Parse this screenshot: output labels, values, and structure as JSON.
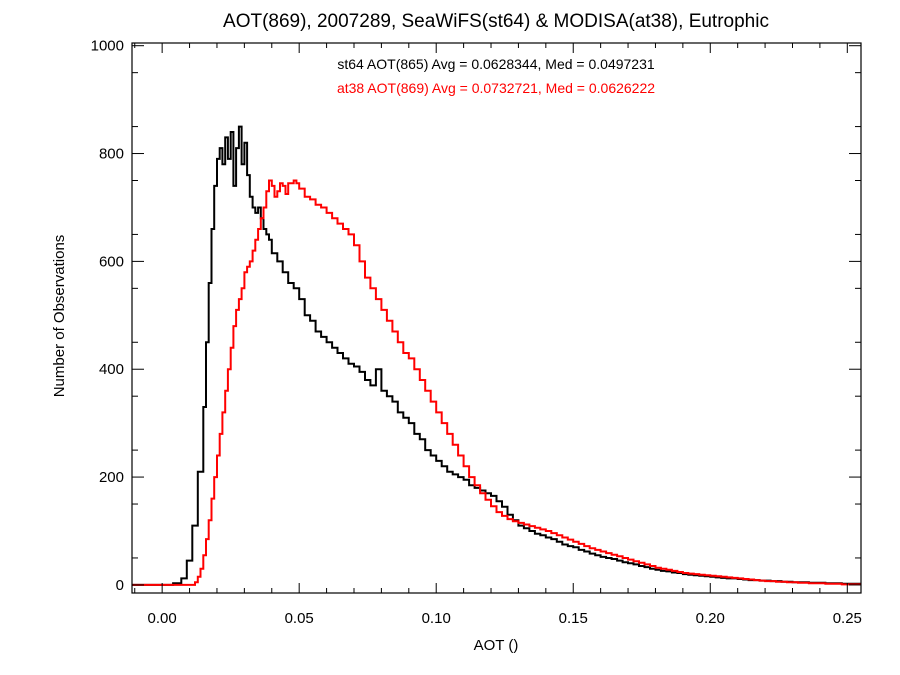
{
  "chart_data": {
    "type": "line",
    "title": "AOT(869), 2007289, SeaWiFS(st64) & MODISA(at38), Eutrophic",
    "xlabel": "AOT ()",
    "ylabel": "Number of Observations",
    "xlim": [
      -0.011,
      0.255
    ],
    "ylim": [
      -15,
      1005
    ],
    "xticks": [
      0.0,
      0.05,
      0.1,
      0.15,
      0.2,
      0.25
    ],
    "xtick_labels": [
      "0.00",
      "0.05",
      "0.10",
      "0.15",
      "0.20",
      "0.25"
    ],
    "yticks": [
      0,
      200,
      400,
      600,
      800,
      1000
    ],
    "ytick_labels": [
      "0",
      "200",
      "400",
      "600",
      "800",
      "1000"
    ],
    "grid": false,
    "step": true,
    "annotations": [
      {
        "text": "st64 AOT(865) Avg = 0.0628344, Med = 0.0497231",
        "color": "#000000"
      },
      {
        "text": "at38 AOT(869) Avg = 0.0732721, Med = 0.0626222",
        "color": "#ff0000"
      }
    ],
    "series": [
      {
        "color": "#000000",
        "points": [
          [
            -0.011,
            0
          ],
          [
            0.0,
            0
          ],
          [
            0.004,
            3
          ],
          [
            0.007,
            12
          ],
          [
            0.009,
            45
          ],
          [
            0.011,
            110
          ],
          [
            0.013,
            210
          ],
          [
            0.015,
            330
          ],
          [
            0.016,
            450
          ],
          [
            0.017,
            560
          ],
          [
            0.018,
            660
          ],
          [
            0.019,
            740
          ],
          [
            0.02,
            790
          ],
          [
            0.021,
            810
          ],
          [
            0.022,
            780
          ],
          [
            0.023,
            830
          ],
          [
            0.024,
            790
          ],
          [
            0.025,
            840
          ],
          [
            0.026,
            740
          ],
          [
            0.027,
            810
          ],
          [
            0.028,
            850
          ],
          [
            0.029,
            780
          ],
          [
            0.03,
            820
          ],
          [
            0.031,
            760
          ],
          [
            0.032,
            720
          ],
          [
            0.033,
            700
          ],
          [
            0.034,
            690
          ],
          [
            0.035,
            700
          ],
          [
            0.036,
            680
          ],
          [
            0.037,
            660
          ],
          [
            0.038,
            650
          ],
          [
            0.039,
            640
          ],
          [
            0.04,
            615
          ],
          [
            0.042,
            600
          ],
          [
            0.044,
            580
          ],
          [
            0.046,
            560
          ],
          [
            0.048,
            550
          ],
          [
            0.05,
            530
          ],
          [
            0.052,
            500
          ],
          [
            0.054,
            490
          ],
          [
            0.056,
            470
          ],
          [
            0.058,
            460
          ],
          [
            0.06,
            450
          ],
          [
            0.062,
            440
          ],
          [
            0.064,
            430
          ],
          [
            0.066,
            420
          ],
          [
            0.068,
            410
          ],
          [
            0.07,
            405
          ],
          [
            0.072,
            395
          ],
          [
            0.074,
            380
          ],
          [
            0.076,
            370
          ],
          [
            0.078,
            400
          ],
          [
            0.08,
            360
          ],
          [
            0.082,
            350
          ],
          [
            0.084,
            340
          ],
          [
            0.086,
            320
          ],
          [
            0.088,
            310
          ],
          [
            0.09,
            300
          ],
          [
            0.092,
            280
          ],
          [
            0.094,
            270
          ],
          [
            0.096,
            250
          ],
          [
            0.098,
            240
          ],
          [
            0.1,
            230
          ],
          [
            0.102,
            220
          ],
          [
            0.104,
            210
          ],
          [
            0.106,
            205
          ],
          [
            0.108,
            200
          ],
          [
            0.11,
            195
          ],
          [
            0.112,
            185
          ],
          [
            0.114,
            180
          ],
          [
            0.116,
            175
          ],
          [
            0.118,
            170
          ],
          [
            0.12,
            165
          ],
          [
            0.122,
            155
          ],
          [
            0.124,
            145
          ],
          [
            0.126,
            130
          ],
          [
            0.128,
            120
          ],
          [
            0.13,
            110
          ],
          [
            0.132,
            105
          ],
          [
            0.134,
            100
          ],
          [
            0.136,
            95
          ],
          [
            0.138,
            92
          ],
          [
            0.14,
            88
          ],
          [
            0.142,
            85
          ],
          [
            0.144,
            80
          ],
          [
            0.146,
            75
          ],
          [
            0.148,
            72
          ],
          [
            0.15,
            70
          ],
          [
            0.152,
            65
          ],
          [
            0.154,
            62
          ],
          [
            0.156,
            58
          ],
          [
            0.158,
            55
          ],
          [
            0.16,
            52
          ],
          [
            0.162,
            50
          ],
          [
            0.164,
            48
          ],
          [
            0.166,
            45
          ],
          [
            0.168,
            42
          ],
          [
            0.17,
            40
          ],
          [
            0.172,
            38
          ],
          [
            0.174,
            35
          ],
          [
            0.176,
            33
          ],
          [
            0.178,
            30
          ],
          [
            0.18,
            28
          ],
          [
            0.182,
            26
          ],
          [
            0.184,
            25
          ],
          [
            0.186,
            23
          ],
          [
            0.188,
            22
          ],
          [
            0.19,
            20
          ],
          [
            0.192,
            19
          ],
          [
            0.194,
            18
          ],
          [
            0.196,
            17
          ],
          [
            0.198,
            16
          ],
          [
            0.2,
            15
          ],
          [
            0.202,
            14
          ],
          [
            0.204,
            13
          ],
          [
            0.206,
            12
          ],
          [
            0.208,
            12
          ],
          [
            0.21,
            11
          ],
          [
            0.212,
            10
          ],
          [
            0.214,
            9
          ],
          [
            0.216,
            9
          ],
          [
            0.218,
            8
          ],
          [
            0.22,
            8
          ],
          [
            0.222,
            7
          ],
          [
            0.224,
            7
          ],
          [
            0.226,
            6
          ],
          [
            0.228,
            6
          ],
          [
            0.23,
            5
          ],
          [
            0.232,
            5
          ],
          [
            0.234,
            5
          ],
          [
            0.236,
            4
          ],
          [
            0.238,
            4
          ],
          [
            0.24,
            4
          ],
          [
            0.242,
            3
          ],
          [
            0.244,
            3
          ],
          [
            0.246,
            3
          ],
          [
            0.248,
            2
          ],
          [
            0.25,
            2
          ],
          [
            0.252,
            2
          ],
          [
            0.255,
            2
          ]
        ]
      },
      {
        "color": "#ff0000",
        "points": [
          [
            -0.011,
            0
          ],
          [
            0.011,
            0
          ],
          [
            0.012,
            5
          ],
          [
            0.013,
            15
          ],
          [
            0.014,
            30
          ],
          [
            0.015,
            55
          ],
          [
            0.016,
            85
          ],
          [
            0.017,
            120
          ],
          [
            0.018,
            160
          ],
          [
            0.019,
            200
          ],
          [
            0.02,
            240
          ],
          [
            0.021,
            280
          ],
          [
            0.022,
            320
          ],
          [
            0.023,
            360
          ],
          [
            0.024,
            400
          ],
          [
            0.025,
            440
          ],
          [
            0.026,
            480
          ],
          [
            0.027,
            510
          ],
          [
            0.028,
            530
          ],
          [
            0.029,
            550
          ],
          [
            0.03,
            580
          ],
          [
            0.031,
            590
          ],
          [
            0.032,
            600
          ],
          [
            0.033,
            620
          ],
          [
            0.034,
            640
          ],
          [
            0.035,
            660
          ],
          [
            0.036,
            680
          ],
          [
            0.037,
            700
          ],
          [
            0.038,
            730
          ],
          [
            0.039,
            750
          ],
          [
            0.04,
            740
          ],
          [
            0.041,
            720
          ],
          [
            0.042,
            730
          ],
          [
            0.043,
            745
          ],
          [
            0.044,
            740
          ],
          [
            0.045,
            725
          ],
          [
            0.046,
            745
          ],
          [
            0.047,
            745
          ],
          [
            0.048,
            750
          ],
          [
            0.049,
            745
          ],
          [
            0.05,
            735
          ],
          [
            0.052,
            720
          ],
          [
            0.054,
            715
          ],
          [
            0.056,
            705
          ],
          [
            0.058,
            700
          ],
          [
            0.06,
            690
          ],
          [
            0.062,
            680
          ],
          [
            0.064,
            670
          ],
          [
            0.066,
            660
          ],
          [
            0.068,
            650
          ],
          [
            0.07,
            630
          ],
          [
            0.072,
            600
          ],
          [
            0.074,
            570
          ],
          [
            0.076,
            550
          ],
          [
            0.078,
            530
          ],
          [
            0.08,
            510
          ],
          [
            0.082,
            490
          ],
          [
            0.084,
            470
          ],
          [
            0.086,
            450
          ],
          [
            0.088,
            430
          ],
          [
            0.09,
            420
          ],
          [
            0.092,
            400
          ],
          [
            0.094,
            380
          ],
          [
            0.096,
            360
          ],
          [
            0.098,
            340
          ],
          [
            0.1,
            320
          ],
          [
            0.102,
            300
          ],
          [
            0.104,
            280
          ],
          [
            0.106,
            260
          ],
          [
            0.108,
            240
          ],
          [
            0.11,
            220
          ],
          [
            0.112,
            200
          ],
          [
            0.114,
            185
          ],
          [
            0.116,
            170
          ],
          [
            0.118,
            158
          ],
          [
            0.12,
            146
          ],
          [
            0.122,
            135
          ],
          [
            0.124,
            128
          ],
          [
            0.126,
            122
          ],
          [
            0.128,
            118
          ],
          [
            0.13,
            115
          ],
          [
            0.132,
            112
          ],
          [
            0.134,
            109
          ],
          [
            0.136,
            106
          ],
          [
            0.138,
            103
          ],
          [
            0.14,
            100
          ],
          [
            0.142,
            96
          ],
          [
            0.144,
            92
          ],
          [
            0.146,
            88
          ],
          [
            0.148,
            84
          ],
          [
            0.15,
            80
          ],
          [
            0.152,
            76
          ],
          [
            0.154,
            72
          ],
          [
            0.156,
            68
          ],
          [
            0.158,
            65
          ],
          [
            0.16,
            62
          ],
          [
            0.162,
            59
          ],
          [
            0.164,
            56
          ],
          [
            0.166,
            53
          ],
          [
            0.168,
            50
          ],
          [
            0.17,
            47
          ],
          [
            0.172,
            44
          ],
          [
            0.174,
            41
          ],
          [
            0.176,
            38
          ],
          [
            0.178,
            35
          ],
          [
            0.18,
            32
          ],
          [
            0.182,
            30
          ],
          [
            0.184,
            28
          ],
          [
            0.186,
            26
          ],
          [
            0.188,
            24
          ],
          [
            0.19,
            22
          ],
          [
            0.192,
            21
          ],
          [
            0.194,
            20
          ],
          [
            0.196,
            19
          ],
          [
            0.198,
            18
          ],
          [
            0.2,
            17
          ],
          [
            0.202,
            16
          ],
          [
            0.204,
            15
          ],
          [
            0.206,
            14
          ],
          [
            0.208,
            13
          ],
          [
            0.21,
            12
          ],
          [
            0.212,
            11
          ],
          [
            0.214,
            10
          ],
          [
            0.216,
            9
          ],
          [
            0.218,
            8
          ],
          [
            0.22,
            7
          ],
          [
            0.222,
            7
          ],
          [
            0.224,
            6
          ],
          [
            0.226,
            6
          ],
          [
            0.228,
            5
          ],
          [
            0.23,
            5
          ],
          [
            0.232,
            4
          ],
          [
            0.234,
            4
          ],
          [
            0.236,
            3
          ],
          [
            0.238,
            3
          ],
          [
            0.24,
            3
          ],
          [
            0.242,
            2
          ],
          [
            0.244,
            2
          ],
          [
            0.246,
            2
          ],
          [
            0.248,
            1
          ],
          [
            0.25,
            1
          ],
          [
            0.252,
            1
          ],
          [
            0.255,
            1
          ]
        ]
      }
    ]
  }
}
